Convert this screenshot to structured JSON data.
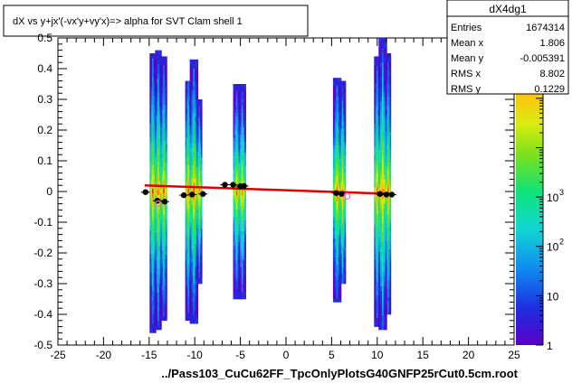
{
  "chart_data": {
    "type": "heatmap",
    "title": "dX vs  y+jx'(-vx'y+vy'x)=> alpha for SVT Clam shell 1",
    "xlabel": "../Pass103_CuCu62FF_TpcOnlyPlotsG40GNFP25rCut0.5cm.root",
    "ylabel": "",
    "xlim": [
      -25,
      25
    ],
    "ylim": [
      -0.5,
      0.5
    ],
    "x_ticks": [
      "-25",
      "-20",
      "-15",
      "-10",
      "-5",
      "0",
      "5",
      "10",
      "15",
      "20",
      "25"
    ],
    "y_ticks": [
      "-0.5",
      "-0.4",
      "-0.3",
      "-0.2",
      "-0.1",
      "0",
      "0.1",
      "0.2",
      "0.3",
      "0.4",
      "0.5"
    ],
    "z_scale": "log",
    "z_range": [
      1,
      1674314
    ],
    "z_ticks": [
      "1",
      "10",
      "10",
      "10"
    ],
    "z_tick_exponents": [
      "",
      "",
      "2",
      "3"
    ],
    "z_tick_values": [
      1,
      10,
      100,
      1000
    ],
    "colors": {
      "frame": "#000000",
      "fit_line": "#e00000",
      "profile_points": "#000000",
      "open_marker": "#ff66cc"
    },
    "clusters": [
      {
        "x": -14.6,
        "width": 0.35,
        "ymin": -0.46,
        "ymax": 0.45,
        "core_width": 0.2
      },
      {
        "x": -14.0,
        "width": 0.35,
        "ymin": -0.45,
        "ymax": 0.46,
        "core_width": 0.3
      },
      {
        "x": -13.4,
        "width": 0.35,
        "ymin": -0.42,
        "ymax": 0.44,
        "core_width": 0.2
      },
      {
        "x": -10.7,
        "width": 0.35,
        "ymin": -0.42,
        "ymax": 0.36,
        "core_width": 0.2
      },
      {
        "x": -10.1,
        "width": 0.45,
        "ymin": -0.43,
        "ymax": 0.43,
        "core_width": 0.3
      },
      {
        "x": -9.5,
        "width": 0.3,
        "ymin": -0.3,
        "ymax": 0.3,
        "core_width": 0.2
      },
      {
        "x": -5.4,
        "width": 0.4,
        "ymin": -0.35,
        "ymax": 0.35,
        "core_width": 0.25
      },
      {
        "x": -4.8,
        "width": 0.4,
        "ymin": -0.35,
        "ymax": 0.35,
        "core_width": 0.25
      },
      {
        "x": 5.6,
        "width": 0.45,
        "ymin": -0.36,
        "ymax": 0.37,
        "core_width": 0.3
      },
      {
        "x": 6.2,
        "width": 0.35,
        "ymin": -0.3,
        "ymax": 0.36,
        "core_width": 0.2
      },
      {
        "x": 10.0,
        "width": 0.35,
        "ymin": -0.44,
        "ymax": 0.44,
        "core_width": 0.2
      },
      {
        "x": 10.6,
        "width": 0.45,
        "ymin": -0.45,
        "ymax": 0.5,
        "core_width": 0.3
      },
      {
        "x": 11.2,
        "width": 0.3,
        "ymin": -0.4,
        "ymax": 0.45,
        "core_width": 0.2
      }
    ],
    "profile_points": [
      {
        "x": -15.4,
        "y": -0.002
      },
      {
        "x": -14.1,
        "y": -0.03
      },
      {
        "x": -13.3,
        "y": -0.033
      },
      {
        "x": -11.2,
        "y": -0.012
      },
      {
        "x": -10.3,
        "y": -0.01
      },
      {
        "x": -9.1,
        "y": -0.008
      },
      {
        "x": -6.7,
        "y": 0.022
      },
      {
        "x": -5.8,
        "y": 0.022
      },
      {
        "x": -5.0,
        "y": 0.017
      },
      {
        "x": -4.6,
        "y": 0.018
      },
      {
        "x": 5.5,
        "y": -0.005
      },
      {
        "x": 6.1,
        "y": -0.008
      },
      {
        "x": 10.3,
        "y": -0.008
      },
      {
        "x": 11.0,
        "y": -0.01
      },
      {
        "x": 11.6,
        "y": -0.01
      }
    ],
    "open_markers": [
      {
        "x": -14.0,
        "y": -0.04
      },
      {
        "x": 6.7,
        "y": -0.015
      }
    ],
    "fit_line": {
      "x": [
        -15.5,
        11.8
      ],
      "y": [
        0.02,
        -0.008
      ]
    },
    "stats_box": {
      "title": "dX4dg1",
      "rows": [
        {
          "label": "Entries",
          "value": "1674314"
        },
        {
          "label": "Mean x",
          "value": "1.806"
        },
        {
          "label": "Mean y",
          "value": "-0.005391"
        },
        {
          "label": "RMS x",
          "value": "8.802"
        },
        {
          "label": "RMS y",
          "value": "0.1229"
        }
      ]
    }
  }
}
